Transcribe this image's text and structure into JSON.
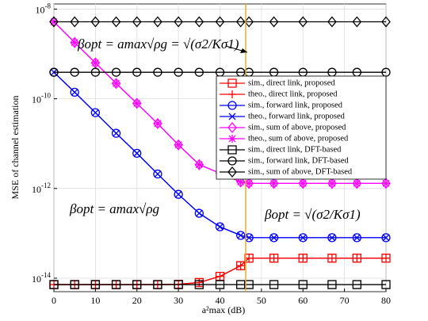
{
  "chart_data": {
    "type": "line",
    "y_scale": "log",
    "grid": true,
    "legend": "right",
    "xlabel": "a²max (dB)",
    "ylabel": "MSE of channel estimation",
    "xlim": [
      0,
      80
    ],
    "xticks": [
      0,
      10,
      20,
      30,
      40,
      50,
      60,
      70,
      80
    ],
    "ylim": [
      5e-15,
      1.3e-08
    ],
    "yticks": [
      {
        "value": 1e-14,
        "label": "10-14"
      },
      {
        "value": 1e-12,
        "label": "10-12"
      },
      {
        "value": 1e-10,
        "label": "10-10"
      },
      {
        "value": 1e-08,
        "label": "10-8"
      }
    ],
    "vline": {
      "x": 46.2,
      "color": "#edb120"
    },
    "annotations": [
      "βopt = amax√ρg = √(σ2/Kσ1)",
      "βopt = amax√ρg",
      "βopt = √(σ2/Kσ1)"
    ],
    "x": [
      0,
      5,
      10,
      15,
      20,
      25,
      30,
      35,
      40,
      45,
      47,
      53,
      60,
      67,
      73,
      80
    ],
    "series": [
      {
        "name": "sim., direct link, proposed",
        "color": "#ff0000",
        "marker": "square",
        "values": [
          7.2e-15,
          7.2e-15,
          7.2e-15,
          7.2e-15,
          7.2e-15,
          7.2e-15,
          7.3e-15,
          8e-15,
          1.1e-14,
          1.9e-14,
          2.8e-14,
          2.8e-14,
          2.8e-14,
          2.8e-14,
          2.8e-14,
          2.8e-14
        ]
      },
      {
        "name": "theo., direct link, proposed",
        "color": "#ff0000",
        "marker": "plus",
        "values": [
          7.2e-15,
          7.2e-15,
          7.2e-15,
          7.2e-15,
          7.2e-15,
          7.2e-15,
          7.3e-15,
          8e-15,
          1.1e-14,
          1.9e-14,
          2.8e-14,
          2.8e-14,
          2.8e-14,
          2.8e-14,
          2.8e-14,
          2.8e-14
        ]
      },
      {
        "name": "sim., forward link, proposed",
        "color": "#0000ff",
        "marker": "circle",
        "values": [
          3.9e-10,
          1.4e-10,
          4.9e-11,
          1.7e-11,
          6.1e-12,
          2.1e-12,
          7.4e-13,
          2.8e-13,
          1.4e-13,
          9e-14,
          8e-14,
          8e-14,
          8e-14,
          8e-14,
          8e-14,
          8e-14
        ]
      },
      {
        "name": "theo., forward link, proposed",
        "color": "#0000ff",
        "marker": "x",
        "values": [
          3.9e-10,
          1.4e-10,
          4.9e-11,
          1.7e-11,
          6.1e-12,
          2.1e-12,
          7.4e-13,
          2.8e-13,
          1.4e-13,
          9e-14,
          8e-14,
          8e-14,
          8e-14,
          8e-14,
          8e-14,
          8e-14
        ]
      },
      {
        "name": "sim., sum of above, proposed",
        "color": "#ff00ff",
        "marker": "diamond",
        "values": [
          5.2e-09,
          1.8e-09,
          6.3e-10,
          2.2e-10,
          7.9e-11,
          2.8e-11,
          9.4e-12,
          3.4e-12,
          2.2e-12,
          1.4e-12,
          1.3e-12,
          1.3e-12,
          1.3e-12,
          1.3e-12,
          1.3e-12,
          1.3e-12
        ]
      },
      {
        "name": "theo., sum of above, proposed",
        "color": "#ff00ff",
        "marker": "star",
        "values": [
          5.2e-09,
          1.8e-09,
          6.3e-10,
          2.2e-10,
          7.9e-11,
          2.8e-11,
          9.4e-12,
          3.4e-12,
          2.2e-12,
          1.4e-12,
          1.3e-12,
          1.3e-12,
          1.3e-12,
          1.3e-12,
          1.3e-12,
          1.3e-12
        ]
      },
      {
        "name": "sim., direct link, DFT-based",
        "color": "#000000",
        "marker": "square",
        "values": [
          7.2e-15,
          7.2e-15,
          7.2e-15,
          7.2e-15,
          7.2e-15,
          7.2e-15,
          7.2e-15,
          7.2e-15,
          7.2e-15,
          7.2e-15,
          7.2e-15,
          7.2e-15,
          7.2e-15,
          7.2e-15,
          7.2e-15,
          7.2e-15
        ]
      },
      {
        "name": "sim., forward link, DFT-based",
        "color": "#000000",
        "marker": "circle",
        "values": [
          3.9e-10,
          3.9e-10,
          3.9e-10,
          3.9e-10,
          3.9e-10,
          3.9e-10,
          3.9e-10,
          3.9e-10,
          3.9e-10,
          3.9e-10,
          3.9e-10,
          3.9e-10,
          3.9e-10,
          3.9e-10,
          3.9e-10,
          3.9e-10
        ]
      },
      {
        "name": "sim., sum of above, DFT-based",
        "color": "#000000",
        "marker": "diamond",
        "values": [
          5.2e-09,
          5.2e-09,
          5.2e-09,
          5.2e-09,
          5.2e-09,
          5.2e-09,
          5.2e-09,
          5.2e-09,
          5.2e-09,
          5.2e-09,
          5.2e-09,
          5.2e-09,
          5.2e-09,
          5.2e-09,
          5.2e-09,
          5.2e-09
        ]
      }
    ]
  }
}
